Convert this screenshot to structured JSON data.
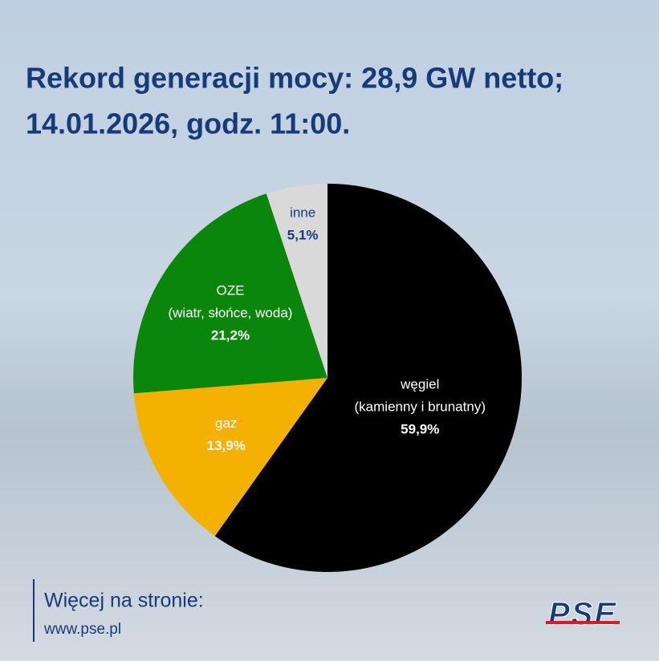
{
  "chart_data": {
    "type": "pie",
    "title": [
      "Rekord generacji mocy: 28,9 GW netto;",
      "14.01.2026, godz. 11:00."
    ],
    "categories": [
      "węgiel",
      "gaz",
      "OZE",
      "inne"
    ],
    "category_notes": [
      "(kamienny i brunatny)",
      null,
      "(wiatr, słońce, woda)",
      null
    ],
    "values": [
      59.9,
      13.9,
      21.2,
      5.1
    ],
    "value_labels": [
      "59,9%",
      "13,9%",
      "21,2%",
      "5,1%"
    ],
    "colors": [
      "#000000",
      "#f5b100",
      "#0a870a",
      "#d9d9d9"
    ]
  },
  "footer": {
    "text": "Więcej na stronie:",
    "url": "www.pse.pl",
    "logo": "PSE"
  }
}
